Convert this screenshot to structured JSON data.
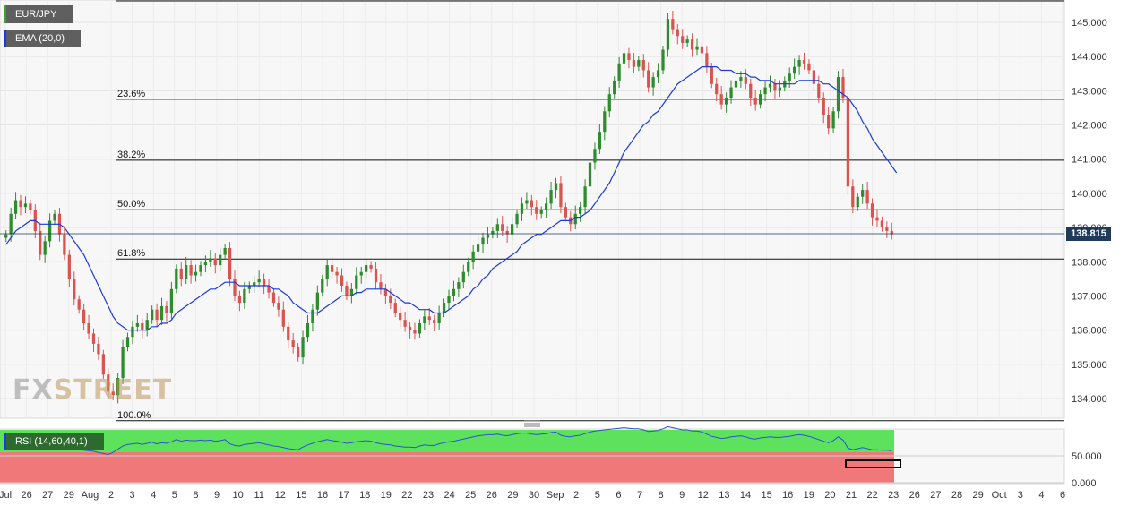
{
  "colors": {
    "up": "#2e8b2e",
    "down": "#d9534f",
    "ema": "#1a3adb",
    "fib": "#111111",
    "rsi_line": "#2a55d0",
    "rsi_over": "#5ee25e",
    "rsi_under": "#f07878",
    "price_tag": "#1f3a5a"
  },
  "legend": {
    "pair": "EUR/JPY",
    "ema": "EMA (20,0)",
    "rsi": "RSI (14,60,40,1)"
  },
  "watermark": {
    "fx": "FX",
    "street": "STREET"
  },
  "last_price": "138.815",
  "chart_data": {
    "type": "candlestick",
    "pair": "EUR/JPY",
    "timeframe": "4h",
    "ylim": [
      133.3,
      145.7
    ],
    "price_ticks": [
      "145.000",
      "144.000",
      "143.000",
      "142.000",
      "141.000",
      "140.000",
      "139.000",
      "138.000",
      "137.000",
      "136.000",
      "135.000",
      "134.000"
    ],
    "x_ticks": [
      "Jul",
      "26",
      "27",
      "29",
      "Aug",
      "2",
      "3",
      "4",
      "5",
      "8",
      "9",
      "10",
      "11",
      "12",
      "15",
      "16",
      "17",
      "18",
      "19",
      "22",
      "23",
      "24",
      "25",
      "26",
      "29",
      "30",
      "Sep",
      "2",
      "5",
      "6",
      "7",
      "8",
      "9",
      "12",
      "13",
      "14",
      "15",
      "16",
      "19",
      "20",
      "21",
      "22",
      "23",
      "26",
      "27",
      "28",
      "29",
      "Oct",
      "3",
      "4",
      "6"
    ],
    "fib_levels": [
      {
        "label": "23.6%",
        "price": 142.75
      },
      {
        "label": "38.2%",
        "price": 140.97
      },
      {
        "label": "50.0%",
        "price": 139.52
      },
      {
        "label": "61.8%",
        "price": 138.08
      },
      {
        "label": "100.0%",
        "price": 133.35
      }
    ],
    "fib_top": 145.63,
    "close_series": [
      138.8,
      139.4,
      139.8,
      139.6,
      139.7,
      139.5,
      138.9,
      138.2,
      138.6,
      139.2,
      139.4,
      138.8,
      138.2,
      137.5,
      136.9,
      136.6,
      136.2,
      135.9,
      135.6,
      135.3,
      134.7,
      134.2,
      134.1,
      134.6,
      135.5,
      135.8,
      136.1,
      136.2,
      136.0,
      136.3,
      136.6,
      136.3,
      136.7,
      136.5,
      137.2,
      137.8,
      137.5,
      137.9,
      137.6,
      137.7,
      137.9,
      138.0,
      138.1,
      137.9,
      138.2,
      138.4,
      137.5,
      137.0,
      136.8,
      137.2,
      137.3,
      137.4,
      137.5,
      137.3,
      137.1,
      136.8,
      136.6,
      136.1,
      135.7,
      135.5,
      135.2,
      135.8,
      136.2,
      136.6,
      137.1,
      137.5,
      137.9,
      137.7,
      137.6,
      137.3,
      137.0,
      137.2,
      137.6,
      137.7,
      137.9,
      137.8,
      137.4,
      137.2,
      137.0,
      136.8,
      136.5,
      136.3,
      136.1,
      136.0,
      135.9,
      136.2,
      136.4,
      136.3,
      136.2,
      136.5,
      136.8,
      137.0,
      137.2,
      137.4,
      137.7,
      138.0,
      138.3,
      138.5,
      138.7,
      138.8,
      138.9,
      139.1,
      138.9,
      138.8,
      139.1,
      139.4,
      139.7,
      139.8,
      139.6,
      139.4,
      139.5,
      139.7,
      140.1,
      140.3,
      139.6,
      139.3,
      139.1,
      139.4,
      139.6,
      140.2,
      140.9,
      141.3,
      141.8,
      142.4,
      142.9,
      143.3,
      143.8,
      144.1,
      143.9,
      143.7,
      143.9,
      143.6,
      143.1,
      143.4,
      143.6,
      144.2,
      145.1,
      144.8,
      144.6,
      144.4,
      144.5,
      144.2,
      144.3,
      144.1,
      143.7,
      143.2,
      142.9,
      142.6,
      142.8,
      143.1,
      143.3,
      143.4,
      143.2,
      142.8,
      142.6,
      142.9,
      143.1,
      143.2,
      143.0,
      143.1,
      143.3,
      143.5,
      143.7,
      143.9,
      143.8,
      143.6,
      143.2,
      142.8,
      142.3,
      141.9,
      142.4,
      143.4,
      142.8,
      140.2,
      139.6,
      139.9,
      140.1,
      139.7,
      139.3,
      139.2,
      139.0,
      138.9,
      138.8
    ],
    "ema_series": [
      138.5,
      138.7,
      138.9,
      139.0,
      139.1,
      139.2,
      139.2,
      139.1,
      139.1,
      139.1,
      139.1,
      139.1,
      139.0,
      138.8,
      138.6,
      138.4,
      138.2,
      137.9,
      137.6,
      137.3,
      137.0,
      136.7,
      136.4,
      136.2,
      136.1,
      136.0,
      136.0,
      136.0,
      136.0,
      136.0,
      136.1,
      136.1,
      136.2,
      136.2,
      136.3,
      136.5,
      136.6,
      136.7,
      136.8,
      136.9,
      137.0,
      137.1,
      137.2,
      137.2,
      137.3,
      137.4,
      137.4,
      137.4,
      137.3,
      137.3,
      137.3,
      137.3,
      137.3,
      137.3,
      137.3,
      137.2,
      137.2,
      137.1,
      137.0,
      136.8,
      136.7,
      136.6,
      136.5,
      136.5,
      136.5,
      136.6,
      136.7,
      136.8,
      136.9,
      137.0,
      137.0,
      137.0,
      137.1,
      137.1,
      137.2,
      137.2,
      137.2,
      137.2,
      137.2,
      137.1,
      137.0,
      136.9,
      136.8,
      136.8,
      136.7,
      136.6,
      136.6,
      136.6,
      136.5,
      136.5,
      136.5,
      136.6,
      136.7,
      136.8,
      136.9,
      137.0,
      137.2,
      137.3,
      137.5,
      137.6,
      137.8,
      137.9,
      138.0,
      138.1,
      138.2,
      138.3,
      138.5,
      138.6,
      138.7,
      138.8,
      138.8,
      138.9,
      139.0,
      139.1,
      139.2,
      139.2,
      139.2,
      139.3,
      139.3,
      139.4,
      139.5,
      139.7,
      139.9,
      140.1,
      140.3,
      140.6,
      140.9,
      141.2,
      141.4,
      141.6,
      141.8,
      142.0,
      142.1,
      142.3,
      142.4,
      142.6,
      142.8,
      143.0,
      143.2,
      143.3,
      143.4,
      143.5,
      143.6,
      143.7,
      143.7,
      143.7,
      143.7,
      143.6,
      143.6,
      143.6,
      143.5,
      143.5,
      143.5,
      143.4,
      143.4,
      143.3,
      143.3,
      143.3,
      143.2,
      143.2,
      143.2,
      143.2,
      143.2,
      143.3,
      143.3,
      143.3,
      143.3,
      143.3,
      143.2,
      143.2,
      143.1,
      143.0,
      142.9,
      142.8,
      142.6,
      142.4,
      142.1,
      141.9,
      141.6,
      141.4,
      141.2,
      141.0,
      140.8,
      140.6
    ],
    "rsi_levels": {
      "ylim": [
        0,
        100
      ],
      "upper": 60,
      "lower": 40,
      "ticks": [
        "50.000",
        "0.000"
      ]
    },
    "rsi_series": [
      42,
      45,
      48,
      46,
      47,
      44,
      40,
      38,
      42,
      46,
      45,
      42,
      38,
      35,
      33,
      34,
      32,
      31,
      30,
      28,
      26,
      24,
      28,
      34,
      40,
      43,
      44,
      45,
      43,
      45,
      47,
      44,
      46,
      45,
      48,
      52,
      49,
      51,
      50,
      50,
      51,
      50,
      51,
      49,
      50,
      52,
      44,
      41,
      40,
      43,
      44,
      45,
      46,
      44,
      42,
      40,
      39,
      37,
      35,
      34,
      33,
      38,
      42,
      45,
      48,
      50,
      52,
      50,
      49,
      47,
      45,
      46,
      48,
      49,
      50,
      49,
      46,
      44,
      43,
      42,
      40,
      39,
      38,
      38,
      37,
      40,
      42,
      41,
      41,
      44,
      46,
      48,
      49,
      51,
      53,
      55,
      57,
      59,
      60,
      61,
      61,
      62,
      60,
      59,
      61,
      63,
      64,
      64,
      62,
      61,
      62,
      63,
      65,
      66,
      60,
      58,
      57,
      59,
      60,
      63,
      66,
      68,
      69,
      70,
      71,
      72,
      73,
      74,
      73,
      72,
      72,
      70,
      67,
      68,
      69,
      72,
      76,
      74,
      72,
      70,
      70,
      68,
      68,
      66,
      62,
      58,
      56,
      54,
      55,
      57,
      58,
      59,
      57,
      54,
      53,
      55,
      56,
      57,
      56,
      56,
      57,
      58,
      60,
      61,
      60,
      58,
      55,
      52,
      49,
      46,
      50,
      57,
      51,
      36,
      33,
      35,
      37,
      35,
      33,
      33,
      32,
      32,
      31
    ]
  }
}
